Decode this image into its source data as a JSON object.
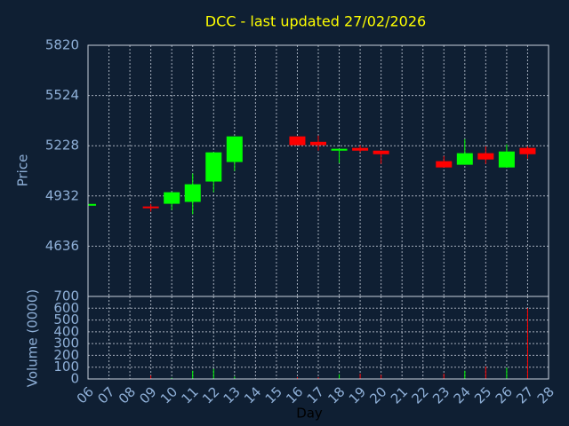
{
  "chart_data": {
    "type": "candlestick",
    "title": "DCC - last updated 27/02/2026",
    "ylabel": "Price",
    "volume_label": "Volume (0000)",
    "xlabel": "Day",
    "categories": [
      "06",
      "07",
      "08",
      "09",
      "10",
      "11",
      "12",
      "13",
      "14",
      "15",
      "16",
      "17",
      "18",
      "19",
      "20",
      "21",
      "22",
      "23",
      "24",
      "25",
      "26",
      "27",
      "28"
    ],
    "open": [
      4878,
      null,
      null,
      4870,
      4886,
      4897,
      5017,
      5132,
      null,
      null,
      5283,
      5251,
      5199,
      5215,
      5199,
      null,
      null,
      5137,
      5116,
      5184,
      5100,
      5215,
      null
    ],
    "high": [
      4885,
      null,
      null,
      4885,
      4954,
      5064,
      5189,
      5283,
      null,
      null,
      5283,
      5288,
      5210,
      5231,
      5199,
      null,
      null,
      5168,
      5267,
      5225,
      5236,
      5225,
      null
    ],
    "low": [
      4878,
      null,
      null,
      4840,
      4850,
      4824,
      4954,
      5079,
      null,
      null,
      5231,
      5199,
      5126,
      5189,
      5121,
      null,
      null,
      5100,
      5116,
      5121,
      5100,
      5152,
      null
    ],
    "close": [
      4885,
      null,
      null,
      4860,
      4954,
      5001,
      5189,
      5283,
      null,
      null,
      5231,
      5231,
      5210,
      5199,
      5178,
      null,
      null,
      5100,
      5184,
      5147,
      5194,
      5178,
      null
    ],
    "volume": [
      5,
      null,
      null,
      30,
      10,
      70,
      85,
      20,
      null,
      null,
      15,
      15,
      40,
      45,
      35,
      null,
      null,
      45,
      70,
      105,
      95,
      600,
      null
    ],
    "up_color": "#00ff00",
    "down_color": "#ff0000",
    "ylim": [
      4340,
      5820
    ],
    "yticks": [
      4636,
      4932,
      5228,
      5524,
      5820
    ],
    "volume_ylim": [
      0,
      700
    ],
    "volume_yticks": [
      0,
      100,
      200,
      300,
      400,
      500,
      600,
      700
    ],
    "grid": true
  }
}
